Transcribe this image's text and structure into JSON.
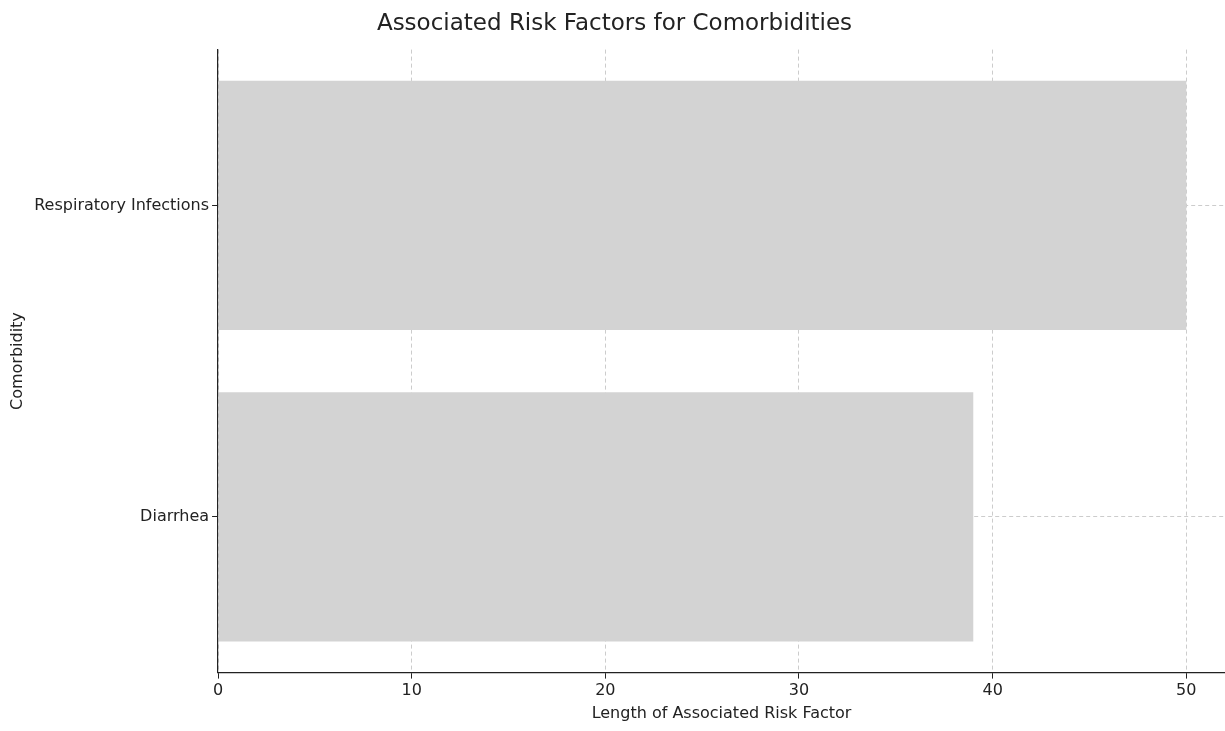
{
  "chart_data": {
    "type": "bar",
    "orientation": "horizontal",
    "title": "Associated Risk Factors for Comorbidities",
    "xlabel": "Length of Associated Risk Factor",
    "ylabel": "Comorbidity",
    "categories": [
      "Respiratory Infections",
      "Diarrhea"
    ],
    "values": [
      50,
      39
    ],
    "color": "#d3d3d3",
    "xlim": [
      0,
      52
    ],
    "xticks": [
      0,
      10,
      20,
      30,
      40,
      50
    ],
    "grid": true,
    "legend": false
  }
}
